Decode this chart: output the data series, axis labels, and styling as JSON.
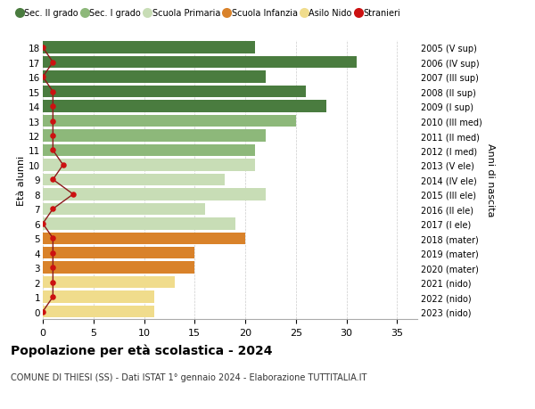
{
  "ages": [
    18,
    17,
    16,
    15,
    14,
    13,
    12,
    11,
    10,
    9,
    8,
    7,
    6,
    5,
    4,
    3,
    2,
    1,
    0
  ],
  "years_labels": [
    "2005 (V sup)",
    "2006 (IV sup)",
    "2007 (III sup)",
    "2008 (II sup)",
    "2009 (I sup)",
    "2010 (III med)",
    "2011 (II med)",
    "2012 (I med)",
    "2013 (V ele)",
    "2014 (IV ele)",
    "2015 (III ele)",
    "2016 (II ele)",
    "2017 (I ele)",
    "2018 (mater)",
    "2019 (mater)",
    "2020 (mater)",
    "2021 (nido)",
    "2022 (nido)",
    "2023 (nido)"
  ],
  "bar_values": [
    21,
    31,
    22,
    26,
    28,
    25,
    22,
    21,
    21,
    18,
    22,
    16,
    19,
    20,
    15,
    15,
    13,
    11,
    11
  ],
  "bar_colors": [
    "#4a7c3f",
    "#4a7c3f",
    "#4a7c3f",
    "#4a7c3f",
    "#4a7c3f",
    "#8db87a",
    "#8db87a",
    "#8db87a",
    "#c8ddb6",
    "#c8ddb6",
    "#c8ddb6",
    "#c8ddb6",
    "#c8ddb6",
    "#d9822a",
    "#d9822a",
    "#d9822a",
    "#f0dc8c",
    "#f0dc8c",
    "#f0dc8c"
  ],
  "stranieri_values": [
    0,
    1,
    0,
    1,
    1,
    1,
    1,
    1,
    2,
    1,
    3,
    1,
    0,
    1,
    1,
    1,
    1,
    1,
    0
  ],
  "legend_labels": [
    "Sec. II grado",
    "Sec. I grado",
    "Scuola Primaria",
    "Scuola Infanzia",
    "Asilo Nido",
    "Stranieri"
  ],
  "legend_colors": [
    "#4a7c3f",
    "#8db87a",
    "#c8ddb6",
    "#d9822a",
    "#f0dc8c",
    "#cc1111"
  ],
  "ylabel_left": "Età alunni",
  "ylabel_right": "Anni di nascita",
  "title": "Popolazione per età scolastica - 2024",
  "subtitle": "COMUNE DI THIESI (SS) - Dati ISTAT 1° gennaio 2024 - Elaborazione TUTTITALIA.IT",
  "xlim": [
    0,
    37
  ],
  "bg_color": "#ffffff",
  "grid_color": "#cccccc",
  "stranieri_line_color": "#8b1a1a",
  "stranieri_dot_color": "#cc1111"
}
